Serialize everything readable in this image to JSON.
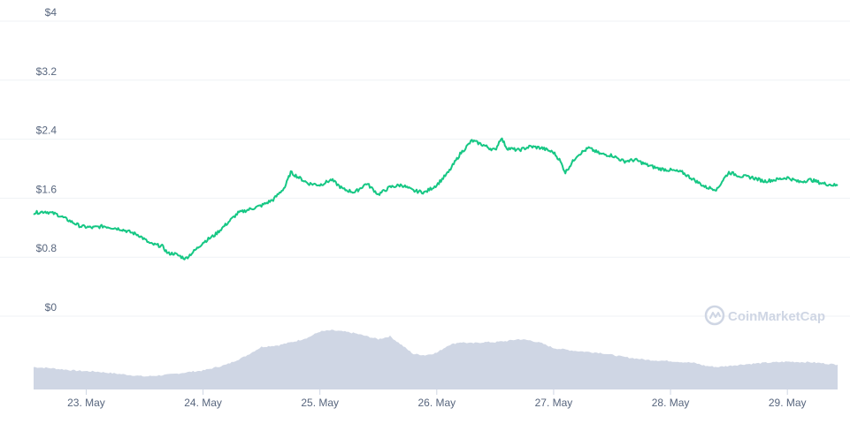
{
  "chart_data": {
    "type": "line",
    "title": "",
    "xlabel": "",
    "ylabel": "",
    "ylim": [
      0,
      4
    ],
    "y_ticks": [
      "$0",
      "$0.8",
      "$1.6",
      "$2.4",
      "$3.2",
      "$4"
    ],
    "y_tick_values": [
      0,
      0.8,
      1.6,
      2.4,
      3.2,
      4
    ],
    "x_ticks": [
      "23. May",
      "24. May",
      "25. May",
      "26. May",
      "27. May",
      "28. May",
      "29. May"
    ],
    "x_tick_days": [
      23,
      24,
      25,
      26,
      27,
      28,
      29
    ],
    "xlim_days": [
      22.55,
      29.43
    ],
    "grid": true,
    "price_color": "#16c784",
    "volume_color": "#cfd6e4",
    "series": [
      {
        "x_days": [
          22.55,
          22.65,
          22.75,
          22.85,
          22.95,
          23.05,
          23.15,
          23.3,
          23.45,
          23.55,
          23.65,
          23.7,
          23.75,
          23.85,
          23.95,
          24.0,
          24.1,
          24.2,
          24.3,
          24.4,
          24.5,
          24.6,
          24.7,
          24.75,
          24.82,
          24.9,
          25.0,
          25.1,
          25.2,
          25.3,
          25.4,
          25.5,
          25.6,
          25.7,
          25.8,
          25.9,
          26.0,
          26.1,
          26.2,
          26.3,
          26.4,
          26.45,
          26.5,
          26.55,
          26.6,
          26.7,
          26.8,
          26.9,
          27.0,
          27.05,
          27.1,
          27.2,
          27.3,
          27.4,
          27.5,
          27.6,
          27.7,
          27.8,
          27.9,
          28.0,
          28.1,
          28.2,
          28.3,
          28.4,
          28.45,
          28.5,
          28.6,
          28.7,
          28.8,
          28.9,
          29.0,
          29.1,
          29.2,
          29.3,
          29.43
        ],
        "values": [
          1.4,
          1.42,
          1.38,
          1.3,
          1.22,
          1.2,
          1.22,
          1.18,
          1.1,
          0.98,
          0.95,
          0.85,
          0.85,
          0.78,
          0.92,
          1.0,
          1.1,
          1.25,
          1.4,
          1.45,
          1.5,
          1.58,
          1.75,
          1.95,
          1.88,
          1.8,
          1.78,
          1.85,
          1.72,
          1.68,
          1.8,
          1.65,
          1.75,
          1.78,
          1.7,
          1.68,
          1.78,
          1.95,
          2.2,
          2.38,
          2.32,
          2.28,
          2.25,
          2.42,
          2.28,
          2.25,
          2.3,
          2.28,
          2.22,
          2.12,
          1.95,
          2.18,
          2.28,
          2.2,
          2.18,
          2.1,
          2.12,
          2.05,
          2.0,
          1.98,
          1.95,
          1.85,
          1.75,
          1.72,
          1.85,
          1.95,
          1.9,
          1.88,
          1.83,
          1.85,
          1.88,
          1.82,
          1.85,
          1.8,
          1.77
        ]
      },
      {
        "x_days": [
          22.55,
          22.7,
          22.9,
          23.1,
          23.3,
          23.5,
          23.7,
          23.9,
          24.0,
          24.2,
          24.35,
          24.5,
          24.65,
          24.8,
          24.9,
          25.0,
          25.1,
          25.2,
          25.3,
          25.4,
          25.5,
          25.6,
          25.7,
          25.8,
          25.9,
          26.0,
          26.1,
          26.2,
          26.3,
          26.4,
          26.5,
          26.6,
          26.7,
          26.8,
          26.9,
          27.0,
          27.2,
          27.4,
          27.6,
          27.8,
          28.0,
          28.2,
          28.3,
          28.4,
          28.5,
          28.6,
          28.8,
          29.0,
          29.2,
          29.43
        ],
        "values": [
          0.38,
          0.36,
          0.32,
          0.3,
          0.26,
          0.22,
          0.25,
          0.3,
          0.32,
          0.42,
          0.55,
          0.72,
          0.75,
          0.82,
          0.88,
          0.98,
          1.0,
          0.98,
          0.95,
          0.9,
          0.85,
          0.9,
          0.75,
          0.6,
          0.58,
          0.62,
          0.75,
          0.8,
          0.78,
          0.8,
          0.8,
          0.82,
          0.85,
          0.83,
          0.78,
          0.7,
          0.65,
          0.62,
          0.55,
          0.5,
          0.48,
          0.45,
          0.4,
          0.38,
          0.4,
          0.42,
          0.45,
          0.47,
          0.46,
          0.42
        ]
      }
    ]
  },
  "watermark": {
    "text": "CoinMarketCap",
    "icon": "coinmarketcap-logo-icon"
  }
}
